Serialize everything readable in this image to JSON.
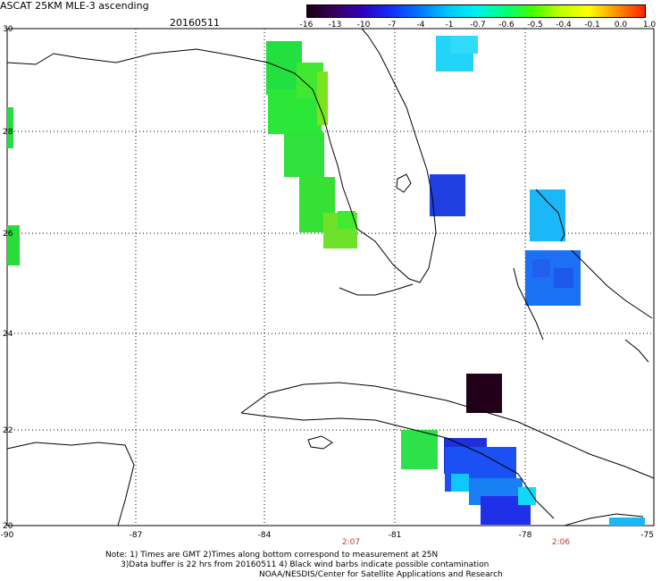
{
  "header": {
    "title": "ASCAT 25KM MLE-3 ascending",
    "date": "20160511"
  },
  "colorbar": {
    "ticks": [
      "-16",
      "-13",
      "-10",
      "-7",
      "-4",
      "-1",
      "-0.7",
      "-0.6",
      "-0.5",
      "-0.4",
      "-0.1",
      "0.0",
      "1.0"
    ],
    "colors": [
      "#1a0010",
      "#3a0060",
      "#3000c0",
      "#1030ff",
      "#0078ff",
      "#00c8ff",
      "#00f0f0",
      "#00ff80",
      "#40ff00",
      "#c0ff00",
      "#ffff00",
      "#ff9000",
      "#ff2000"
    ]
  },
  "axes": {
    "lon_labels": [
      "-90",
      "-87",
      "-84",
      "-81",
      "-78",
      "-75"
    ],
    "lat_labels": [
      "30",
      "28",
      "26",
      "24",
      "22",
      "20"
    ]
  },
  "time_labels": [
    "2:07",
    "2:06"
  ],
  "notes": {
    "line1": "Note: 1) Times are GMT 2)Times along bottom correspond to measurement at 25N",
    "line2": "      3)Data buffer is 22 hrs from 20160511 4) Black wind barbs indicate possible contamination",
    "credit": "NOAA/NESDIS/Center for Satellite Applications and Research"
  }
}
